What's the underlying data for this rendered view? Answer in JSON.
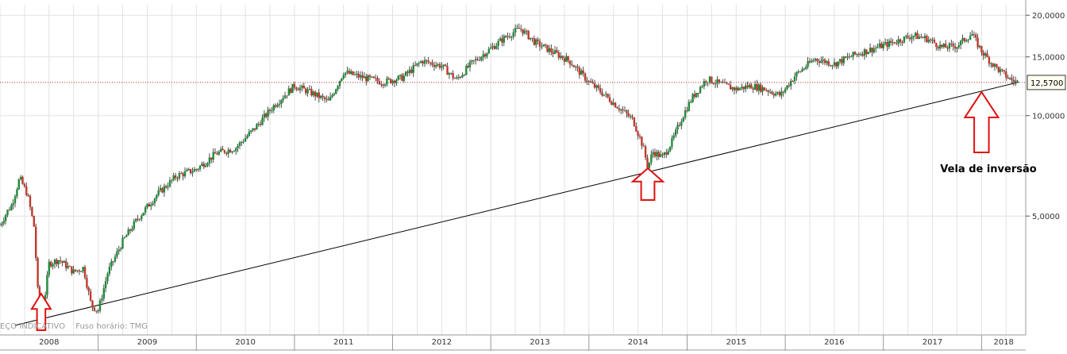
{
  "footer": {
    "left_text": "EÇO INDICATIVO",
    "timezone_text": "Fuso horário: TMG"
  },
  "annotation": {
    "text": "Vela de inversão"
  },
  "colors": {
    "up": "#1f8a3a",
    "down": "#c0392b",
    "arrow": "#e01010",
    "price_line": "#b03030",
    "grid": "#e2e2e2",
    "trendline": "#000000"
  },
  "chart_data": {
    "type": "candlestick",
    "y_scale": "log",
    "ylim": [
      2200,
      21500
    ],
    "y_ticks": [
      {
        "value": 20000,
        "label": "20,0000"
      },
      {
        "value": 15000,
        "label": "15,0000"
      },
      {
        "value": 10000,
        "label": "10,0000"
      },
      {
        "value": 5000,
        "label": "5,0000"
      }
    ],
    "x_ticks": [
      "2008",
      "2009",
      "2010",
      "2011",
      "2012",
      "2013",
      "2014",
      "2015",
      "2016",
      "2017",
      "2018"
    ],
    "xlim": [
      2008.0,
      2018.45
    ],
    "current_price": {
      "value": 12570,
      "label": "12,5700"
    },
    "trendline": [
      {
        "x": 2008.15,
        "y": 2350
      },
      {
        "x": 2018.38,
        "y": 12600
      }
    ],
    "arrows_at": [
      2008.17,
      2014.33,
      2018.0
    ],
    "price_path": [
      [
        2008.0,
        4700
      ],
      [
        2008.08,
        5200
      ],
      [
        2008.12,
        5400
      ],
      [
        2008.2,
        6500
      ],
      [
        2008.28,
        5800
      ],
      [
        2008.35,
        4600
      ],
      [
        2008.38,
        3100
      ],
      [
        2008.42,
        2350
      ],
      [
        2008.5,
        3600
      ],
      [
        2008.6,
        3700
      ],
      [
        2008.75,
        3400
      ],
      [
        2008.85,
        3500
      ],
      [
        2008.93,
        2700
      ],
      [
        2009.0,
        2600
      ],
      [
        2009.1,
        3400
      ],
      [
        2009.25,
        4200
      ],
      [
        2009.4,
        4900
      ],
      [
        2009.6,
        5800
      ],
      [
        2009.8,
        6600
      ],
      [
        2010.0,
        6900
      ],
      [
        2010.2,
        7700
      ],
      [
        2010.4,
        8000
      ],
      [
        2010.6,
        9200
      ],
      [
        2010.8,
        10800
      ],
      [
        2011.0,
        12300
      ],
      [
        2011.2,
        11600
      ],
      [
        2011.35,
        11000
      ],
      [
        2011.5,
        13500
      ],
      [
        2011.7,
        13000
      ],
      [
        2011.9,
        12600
      ],
      [
        2012.1,
        13000
      ],
      [
        2012.3,
        14600
      ],
      [
        2012.5,
        14100
      ],
      [
        2012.65,
        12800
      ],
      [
        2012.8,
        14300
      ],
      [
        2013.0,
        15900
      ],
      [
        2013.15,
        17200
      ],
      [
        2013.3,
        18300
      ],
      [
        2013.45,
        16600
      ],
      [
        2013.6,
        15700
      ],
      [
        2013.8,
        14600
      ],
      [
        2014.0,
        12600
      ],
      [
        2014.15,
        11600
      ],
      [
        2014.3,
        10600
      ],
      [
        2014.45,
        9700
      ],
      [
        2014.55,
        8100
      ],
      [
        2014.6,
        7000
      ],
      [
        2014.65,
        7800
      ],
      [
        2014.75,
        7500
      ],
      [
        2014.85,
        8400
      ],
      [
        2014.95,
        9900
      ],
      [
        2015.05,
        11300
      ],
      [
        2015.2,
        12900
      ],
      [
        2015.35,
        12400
      ],
      [
        2015.5,
        12000
      ],
      [
        2015.65,
        12300
      ],
      [
        2015.8,
        12000
      ],
      [
        2015.95,
        11500
      ],
      [
        2016.1,
        13200
      ],
      [
        2016.3,
        14800
      ],
      [
        2016.5,
        14300
      ],
      [
        2016.7,
        15200
      ],
      [
        2016.9,
        15900
      ],
      [
        2017.1,
        16600
      ],
      [
        2017.3,
        17400
      ],
      [
        2017.45,
        17000
      ],
      [
        2017.6,
        16000
      ],
      [
        2017.75,
        16200
      ],
      [
        2017.9,
        17600
      ],
      [
        2018.0,
        15600
      ],
      [
        2018.1,
        14400
      ],
      [
        2018.2,
        13500
      ],
      [
        2018.3,
        12800
      ],
      [
        2018.38,
        12570
      ]
    ]
  }
}
